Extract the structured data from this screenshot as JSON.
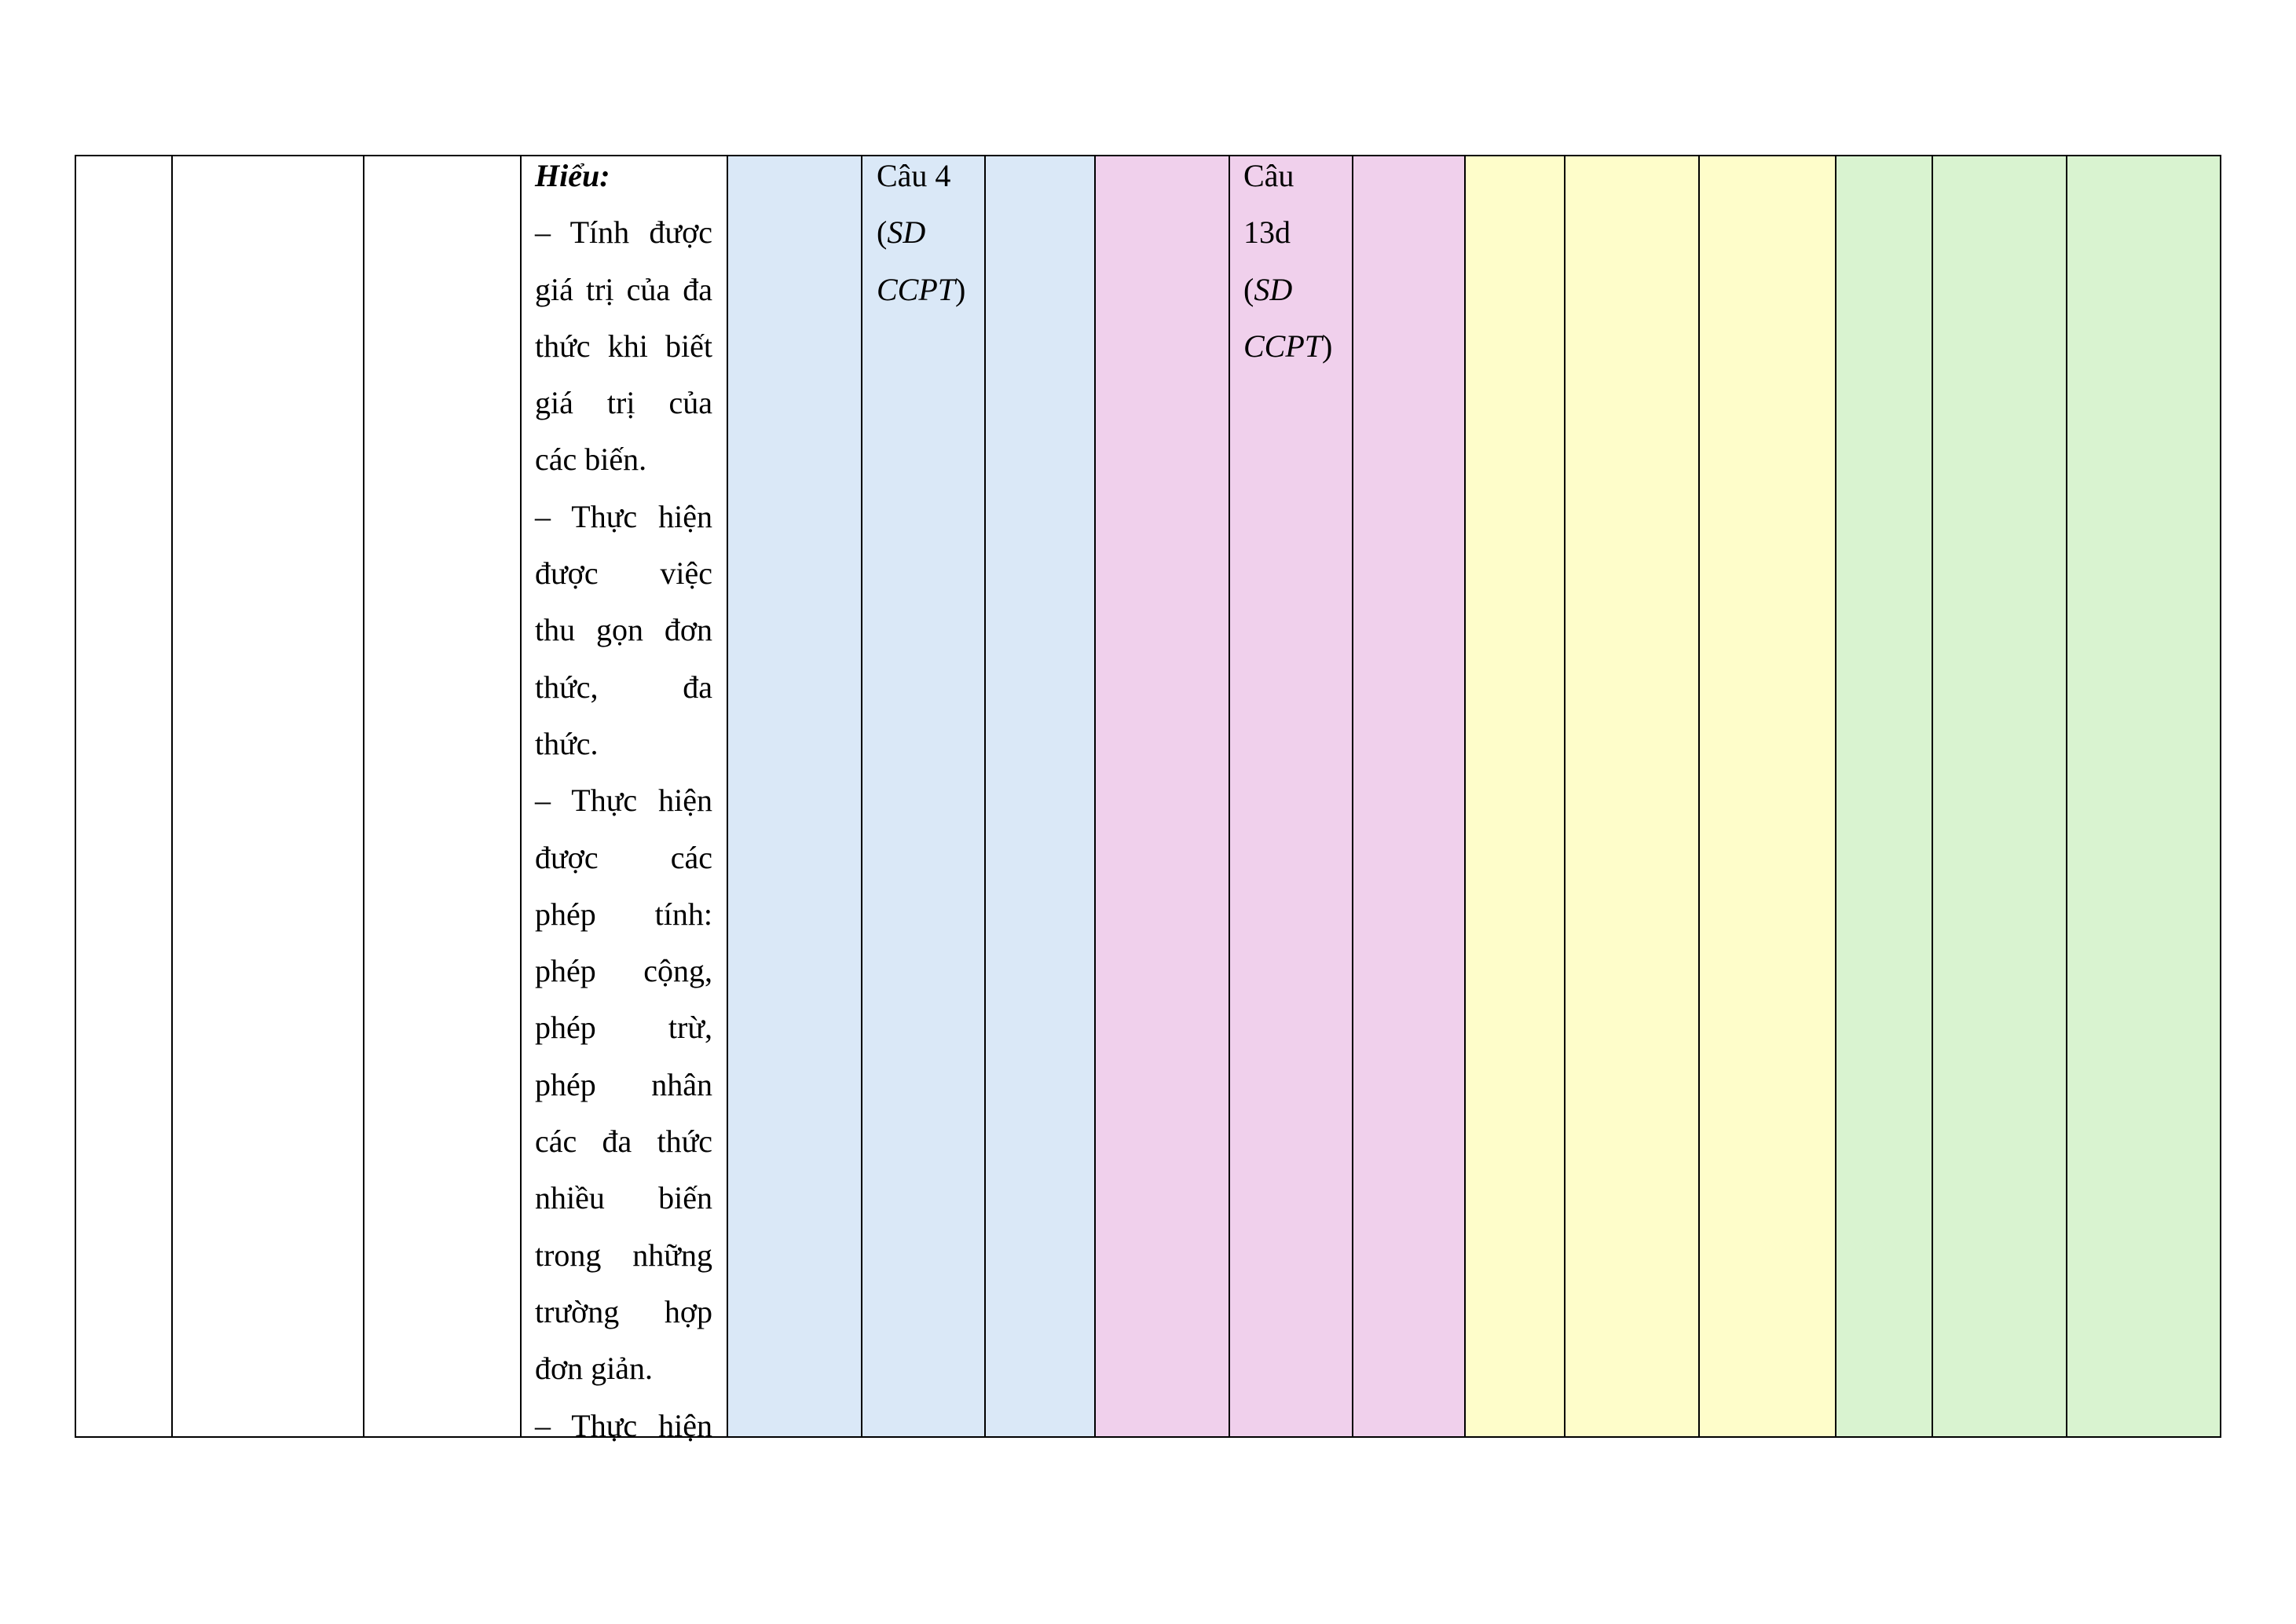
{
  "colors": {
    "blue": "#dae8f7",
    "pink": "#f0d0ec",
    "yellow": "#fefdca",
    "green": "#d9f3d0",
    "border": "#000000"
  },
  "content_cell": {
    "heading": "Hiểu:",
    "lines": [
      "– Tính được",
      "giá trị của đa",
      "thức khi biết",
      "giá trị của",
      "các biến.",
      "– Thực hiện",
      "được việc",
      "thu gọn đơn",
      "thức, đa",
      "thức.",
      "– Thực hiện",
      "được các",
      "phép tính:",
      "phép cộng,",
      "phép trừ,",
      "phép nhân",
      "các đa thức",
      "nhiều biến",
      "trong những",
      "trường hợp",
      "đơn giản.",
      "– Thực hiện"
    ]
  },
  "question_cells": [
    {
      "line1": "Câu 4",
      "open": "(",
      "italic": "SD",
      "italic2": "CCPT",
      "close": ")"
    },
    {
      "line1": "Câu",
      "line2": "13d",
      "open": "(",
      "italic": "SD",
      "italic2": "CCPT",
      "close": ")"
    }
  ]
}
